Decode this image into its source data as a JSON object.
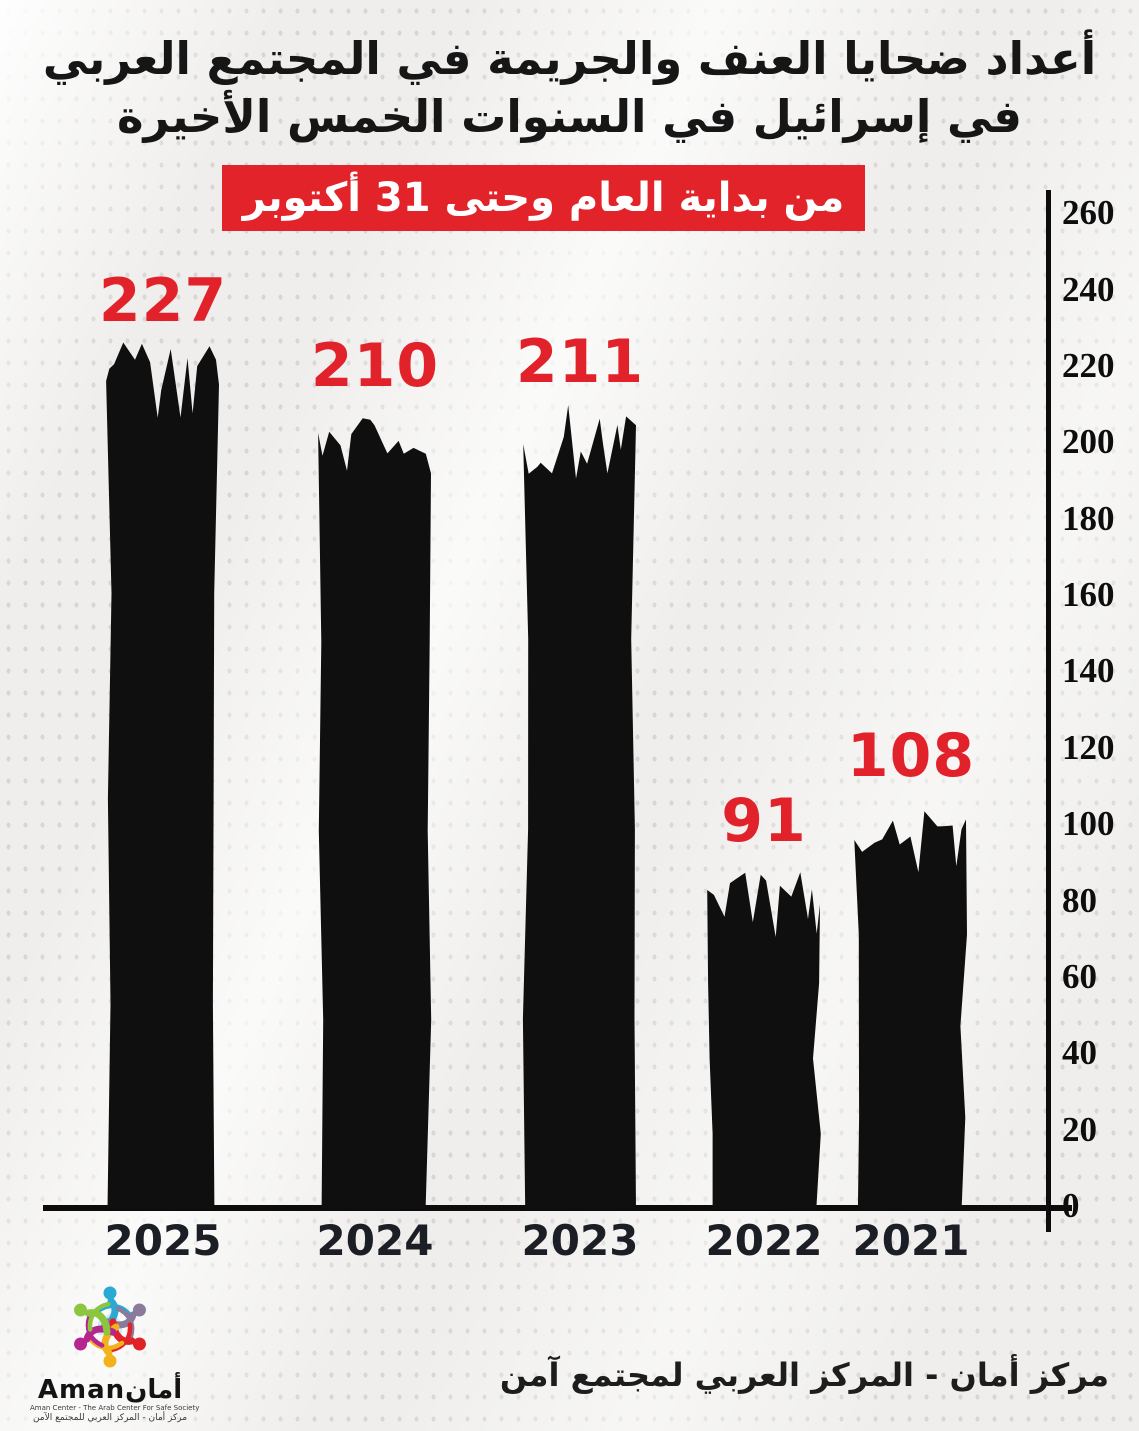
{
  "chart_data": {
    "type": "bar",
    "title_line1": "أعداد ضحايا العنف والجريمة في المجتمع العربي",
    "title_line2": "في إسرائيل في السنوات الخمس الأخيرة",
    "period_banner": "من بداية العام وحتى 31 أكتوبر",
    "categories": [
      "2025",
      "2024",
      "2023",
      "2022",
      "2021"
    ],
    "values": [
      227,
      210,
      211,
      91,
      108
    ],
    "xlabel": "",
    "ylabel": "",
    "ylim": [
      0,
      260
    ],
    "yticks": [
      260,
      240,
      220,
      200,
      180,
      160,
      140,
      120,
      100,
      80,
      60,
      40,
      20,
      0
    ],
    "axis_position": "right",
    "grid": false,
    "bar_color": "#0f0f0f",
    "value_label_color": "#e1222a",
    "category_label_color": "#1c1e26",
    "banner_color": "#e2242a"
  },
  "footer": {
    "credit": "مركز أمان - المركز العربي لمجتمع آمن"
  },
  "logo": {
    "brand": "Amanأمان",
    "tagline_en": "Aman Center - The Arab Center For Safe Society",
    "tagline_ar": "مركز أمان - المركز العربي للمجتمع الآمن",
    "figure_colors": [
      "#2aa9d2",
      "#8a7a9b",
      "#e02229",
      "#f2b21c",
      "#b5268e",
      "#8cc63f"
    ],
    "house_color": "#c9e6f4"
  }
}
